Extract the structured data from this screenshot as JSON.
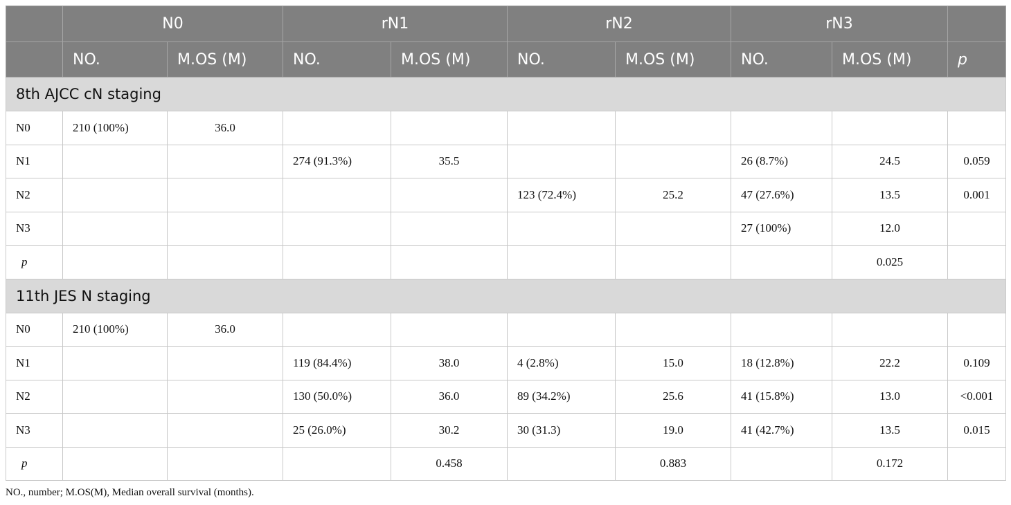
{
  "header": {
    "groups": [
      "N0",
      "rN1",
      "rN2",
      "rN3"
    ],
    "subheaders": [
      "NO.",
      "M.OS (M)",
      "NO.",
      "M.OS (M)",
      "NO.",
      "M.OS (M)",
      "NO.",
      "M.OS (M)",
      "p"
    ]
  },
  "sections": [
    {
      "title": "8th AJCC cN staging",
      "rows": [
        [
          "N0",
          "210 (100%)",
          "36.0",
          null,
          null,
          null,
          null,
          null,
          null,
          null
        ],
        [
          "N1",
          null,
          null,
          "274 (91.3%)",
          "35.5",
          null,
          null,
          "26 (8.7%)",
          "24.5",
          "0.059"
        ],
        [
          "N2",
          null,
          null,
          null,
          null,
          "123 (72.4%)",
          "25.2",
          "47 (27.6%)",
          "13.5",
          "0.001"
        ],
        [
          "N3",
          null,
          null,
          null,
          null,
          null,
          null,
          "27 (100%)",
          "12.0",
          null
        ],
        [
          "p",
          null,
          null,
          null,
          null,
          null,
          null,
          null,
          "0.025",
          null
        ]
      ]
    },
    {
      "title": "11th JES N staging",
      "rows": [
        [
          "N0",
          "210 (100%)",
          "36.0",
          null,
          null,
          null,
          null,
          null,
          null,
          null
        ],
        [
          "N1",
          null,
          null,
          "119 (84.4%)",
          "38.0",
          "4 (2.8%)",
          "15.0",
          "18 (12.8%)",
          "22.2",
          "0.109"
        ],
        [
          "N2",
          null,
          null,
          "130 (50.0%)",
          "36.0",
          "89 (34.2%)",
          "25.6",
          "41 (15.8%)",
          "13.0",
          "<0.001"
        ],
        [
          "N3",
          null,
          null,
          "25 (26.0%)",
          "30.2",
          "30 (31.3)",
          "19.0",
          "41 (42.7%)",
          "13.5",
          "0.015"
        ],
        [
          "p",
          null,
          null,
          null,
          "0.458",
          null,
          "0.883",
          null,
          "0.172",
          null
        ]
      ]
    }
  ],
  "footnote": "NO., number; M.OS(M), Median overall survival (months)."
}
